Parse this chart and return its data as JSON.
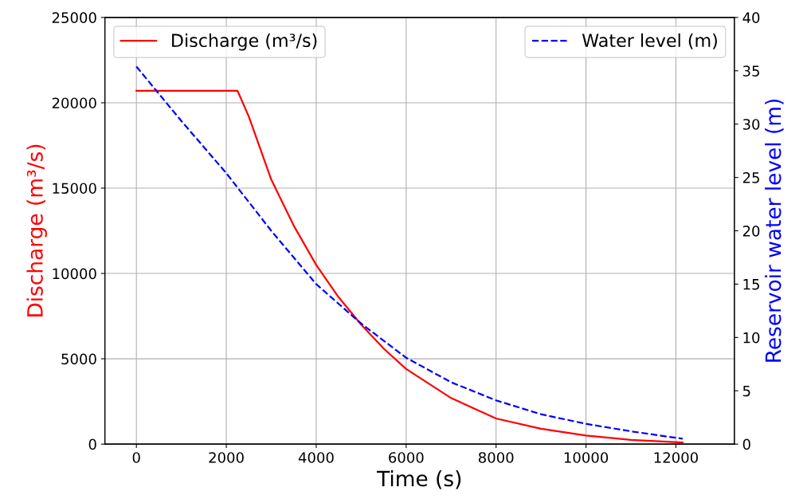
{
  "chart_data": {
    "type": "line",
    "xlabel": "Time (s)",
    "ylabel": "Discharge (m³/s)",
    "y2label": "Reservoir water level (m)",
    "xlim": [
      -700,
      13300
    ],
    "xticks": [
      0,
      2000,
      4000,
      6000,
      8000,
      10000,
      12000
    ],
    "ylim": [
      0,
      25000
    ],
    "yticks": [
      0,
      5000,
      10000,
      15000,
      20000,
      25000
    ],
    "y2lim": [
      0,
      40
    ],
    "y2ticks": [
      0,
      5,
      10,
      15,
      20,
      25,
      30,
      35,
      40
    ],
    "grid": true,
    "legend": "top",
    "marker": "none",
    "series": [
      {
        "name": "Discharge (m³/s)",
        "color": "#ff0000",
        "line_style": "solid",
        "x": [
          0,
          2250,
          2500,
          3000,
          3500,
          4000,
          4500,
          5000,
          5500,
          6000,
          7000,
          8000,
          9000,
          10000,
          11000,
          12150
        ],
        "values": [
          20700,
          20700,
          19200,
          15500,
          12800,
          10500,
          8600,
          7000,
          5600,
          4400,
          2700,
          1500,
          900,
          500,
          250,
          100
        ]
      },
      {
        "name": "Water level (m)",
        "color": "#0000ff",
        "line_style": "dashed",
        "axis": "y2",
        "x": [
          0,
          1000,
          2000,
          3000,
          4000,
          5000,
          6000,
          7000,
          8000,
          9000,
          10000,
          11000,
          12150
        ],
        "values": [
          35.4,
          30.3,
          25.4,
          20.0,
          15.0,
          11.3,
          8.1,
          5.8,
          4.1,
          2.8,
          1.9,
          1.2,
          0.5
        ]
      }
    ]
  }
}
